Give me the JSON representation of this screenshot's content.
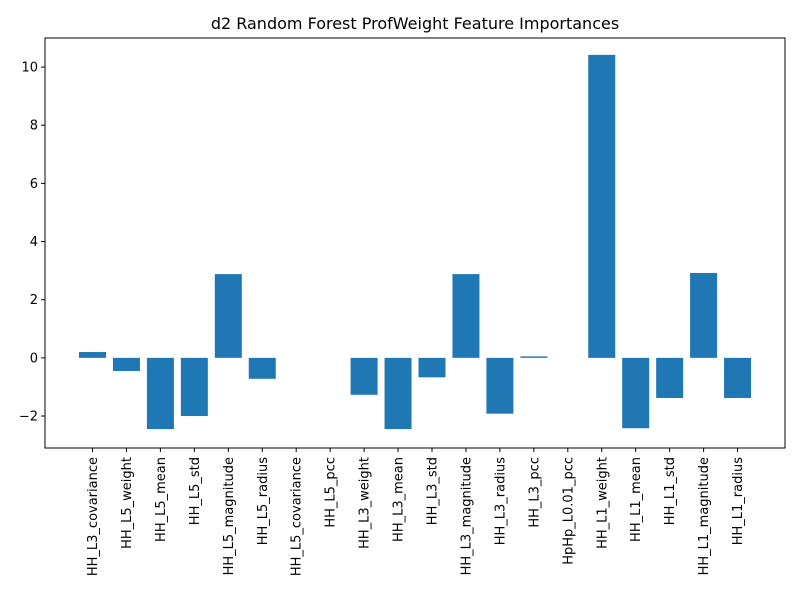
{
  "chart_data": {
    "type": "bar",
    "title": "d2 Random Forest ProfWeight Feature Importances",
    "xlabel": "",
    "ylabel": "",
    "categories": [
      "HH_L3_covariance",
      "HH_L5_weight",
      "HH_L5_mean",
      "HH_L5_std",
      "HH_L5_magnitude",
      "HH_L5_radius",
      "HH_L5_covariance",
      "HH_L5_pcc",
      "HH_L3_weight",
      "HH_L3_mean",
      "HH_L3_std",
      "HH_L3_magnitude",
      "HH_L3_radius",
      "HH_L3_pcc",
      "HpHp_L0.01_pcc",
      "HH_L1_weight",
      "HH_L1_mean",
      "HH_L1_std",
      "HH_L1_magnitude",
      "HH_L1_radius"
    ],
    "values": [
      0.2,
      -0.45,
      -2.45,
      -2.0,
      2.88,
      -0.72,
      0.0,
      0.0,
      -1.27,
      -2.45,
      -0.67,
      2.88,
      -1.92,
      0.05,
      0.0,
      10.42,
      -2.42,
      -1.38,
      2.92,
      -1.38
    ],
    "ylim": [
      -3.1,
      11.0
    ],
    "yticks": [
      -2,
      0,
      2,
      4,
      6,
      8,
      10
    ],
    "bar_color": "#1f77b4",
    "grid": false,
    "legend": "none"
  }
}
